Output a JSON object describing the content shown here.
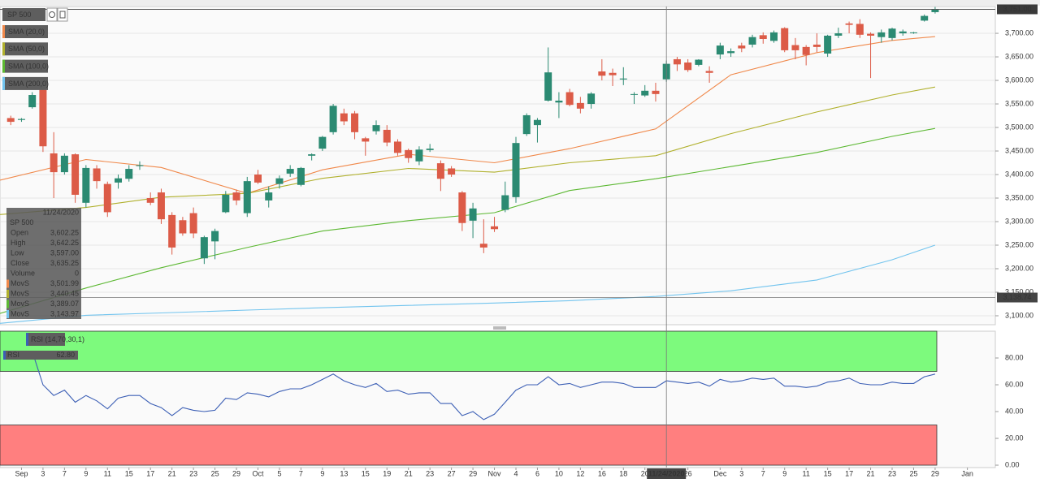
{
  "chart_data": [
    {
      "type": "candlestick",
      "series": [
        {
          "name": "SP 500",
          "up_color": "#2b8a72",
          "down_color": "#dc5b47",
          "open": [
            3520,
            3516,
            3543,
            3580,
            3445,
            3405,
            3443,
            3340,
            3413,
            3380,
            3383,
            3391,
            3418,
            3350,
            3362,
            3314,
            3303,
            3318,
            3222,
            3258,
            3320,
            3362,
            3318,
            3400,
            3345,
            3380,
            3402,
            3378,
            3440,
            3455,
            3490,
            3530,
            3530,
            3477,
            3492,
            3495,
            3470,
            3452,
            3428,
            3452,
            3424,
            3413,
            3362,
            3302,
            3253,
            3290,
            3325,
            3352,
            3486,
            3505,
            3557,
            3553,
            3575,
            3552,
            3550,
            3619,
            3616,
            3602,
            3570,
            3568,
            3578,
            3602.25,
            3645,
            3638,
            3633,
            3620,
            3655,
            3658,
            3674,
            3676,
            3696,
            3684,
            3711,
            3675,
            3671,
            3676,
            3657,
            3695,
            3721,
            3720,
            3699,
            3692,
            3690,
            3700,
            3701,
            3727,
            3745
          ],
          "high": [
            3525,
            3520,
            3575,
            3590,
            3490,
            3445,
            3445,
            3420,
            3420,
            3385,
            3400,
            3420,
            3428,
            3362,
            3370,
            3320,
            3310,
            3330,
            3270,
            3285,
            3365,
            3368,
            3395,
            3410,
            3375,
            3398,
            3420,
            3416,
            3445,
            3482,
            3550,
            3540,
            3535,
            3480,
            3515,
            3505,
            3475,
            3455,
            3460,
            3465,
            3430,
            3418,
            3365,
            3340,
            3305,
            3310,
            3385,
            3480,
            3530,
            3520,
            3670,
            3575,
            3582,
            3565,
            3575,
            3645,
            3625,
            3628,
            3575,
            3590,
            3595,
            3642.25,
            3650,
            3645,
            3645,
            3630,
            3680,
            3668,
            3680,
            3697,
            3702,
            3706,
            3713,
            3690,
            3675,
            3700,
            3697,
            3712,
            3725,
            3730,
            3702,
            3708,
            3712,
            3708,
            3703,
            3740,
            3756
          ],
          "low": [
            3505,
            3512,
            3540,
            3448,
            3350,
            3400,
            3340,
            3330,
            3370,
            3310,
            3370,
            3385,
            3410,
            3335,
            3295,
            3230,
            3270,
            3265,
            3210,
            3220,
            3318,
            3335,
            3310,
            3380,
            3330,
            3370,
            3395,
            3375,
            3430,
            3450,
            3485,
            3505,
            3475,
            3440,
            3485,
            3460,
            3440,
            3425,
            3420,
            3448,
            3365,
            3395,
            3280,
            3265,
            3233,
            3278,
            3320,
            3340,
            3482,
            3468,
            3555,
            3520,
            3545,
            3530,
            3540,
            3600,
            3588,
            3590,
            3550,
            3565,
            3555,
            3597,
            3620,
            3618,
            3630,
            3595,
            3645,
            3650,
            3660,
            3670,
            3678,
            3680,
            3660,
            3645,
            3632,
            3660,
            3650,
            3690,
            3700,
            3690,
            3605,
            3680,
            3685,
            3695,
            3699,
            3725,
            3742
          ],
          "close": [
            3512,
            3518,
            3569,
            3460,
            3405,
            3440,
            3357,
            3414,
            3386,
            3320,
            3392,
            3412,
            3420,
            3340,
            3305,
            3245,
            3275,
            3275,
            3267,
            3280,
            3357,
            3345,
            3386,
            3383,
            3362,
            3392,
            3412,
            3414,
            3443,
            3480,
            3546,
            3513,
            3490,
            3470,
            3505,
            3468,
            3446,
            3435,
            3453,
            3455,
            3391,
            3400,
            3297,
            3328,
            3245,
            3284,
            3356,
            3467,
            3526,
            3516,
            3617,
            3557,
            3548,
            3540,
            3572,
            3610,
            3611,
            3604,
            3571,
            3578,
            3571,
            3635.25,
            3634,
            3622,
            3644,
            3616,
            3674,
            3662,
            3668,
            3692,
            3688,
            3702,
            3664,
            3664,
            3654,
            3671,
            3695,
            3700,
            3718,
            3697,
            3695,
            3702,
            3710,
            3704,
            3702,
            3737,
            3751
          ]
        }
      ],
      "lines": [
        {
          "name": "SMA (20,0)",
          "color": "#f0884a",
          "x": [
            -1,
            7,
            14,
            22,
            29,
            37,
            45,
            52,
            60,
            67,
            75,
            82,
            86
          ],
          "values": [
            3388,
            3432,
            3415,
            3360,
            3410,
            3443,
            3425,
            3455,
            3497,
            3612,
            3659,
            3685,
            3693
          ]
        },
        {
          "name": "SMA (50,0)",
          "color": "#b0b02c",
          "x": [
            -1,
            7,
            14,
            22,
            29,
            37,
            45,
            52,
            60,
            67,
            75,
            82,
            86
          ],
          "values": [
            3315,
            3330,
            3352,
            3360,
            3392,
            3413,
            3405,
            3425,
            3440,
            3487,
            3533,
            3569,
            3586
          ]
        },
        {
          "name": "SMA (100,0)",
          "color": "#5cb832",
          "x": [
            -1,
            7,
            14,
            22,
            29,
            37,
            45,
            52,
            60,
            67,
            75,
            82,
            86
          ],
          "values": [
            3105,
            3159,
            3202,
            3245,
            3280,
            3302,
            3319,
            3366,
            3391,
            3417,
            3447,
            3481,
            3498
          ]
        },
        {
          "name": "SMA (200,0)",
          "color": "#72c4ee",
          "x": [
            -1,
            7,
            14,
            22,
            29,
            37,
            45,
            52,
            60,
            67,
            75,
            82,
            86
          ],
          "values": [
            3084,
            3101,
            3106,
            3112,
            3117,
            3122,
            3127,
            3132,
            3141,
            3153,
            3176,
            3219,
            3250
          ]
        }
      ],
      "xlim": [
        -1,
        91.6
      ],
      "ylim": [
        3081,
        3757
      ],
      "grid": true,
      "yticks": [
        {
          "value": 3100,
          "label": "3,100.00"
        },
        {
          "value": 3150,
          "label": "3,150.00"
        },
        {
          "value": 3200,
          "label": "3,200.00"
        },
        {
          "value": 3250,
          "label": "3,250.00"
        },
        {
          "value": 3300,
          "label": "3,300.00"
        },
        {
          "value": 3350,
          "label": "3,350.00"
        },
        {
          "value": 3400,
          "label": "3,400.00"
        },
        {
          "value": 3450,
          "label": "3,450.00"
        },
        {
          "value": 3500,
          "label": "3,500.00"
        },
        {
          "value": 3550,
          "label": "3,550.00"
        },
        {
          "value": 3600,
          "label": "3,600.00"
        },
        {
          "value": 3650,
          "label": "3,650.00"
        },
        {
          "value": 3700,
          "label": "3,700.00"
        }
      ],
      "xticks": [
        {
          "value": 1,
          "label": "Sep"
        },
        {
          "value": 3,
          "label": "3"
        },
        {
          "value": 5,
          "label": "7"
        },
        {
          "value": 7,
          "label": "9"
        },
        {
          "value": 9,
          "label": "11"
        },
        {
          "value": 11,
          "label": "15"
        },
        {
          "value": 13,
          "label": "17"
        },
        {
          "value": 15,
          "label": "21"
        },
        {
          "value": 17,
          "label": "23"
        },
        {
          "value": 19,
          "label": "25"
        },
        {
          "value": 21,
          "label": "29"
        },
        {
          "value": 23,
          "label": "Oct"
        },
        {
          "value": 25,
          "label": "5"
        },
        {
          "value": 27,
          "label": "7"
        },
        {
          "value": 29,
          "label": "9"
        },
        {
          "value": 31,
          "label": "13"
        },
        {
          "value": 33,
          "label": "15"
        },
        {
          "value": 35,
          "label": "19"
        },
        {
          "value": 37,
          "label": "21"
        },
        {
          "value": 39,
          "label": "23"
        },
        {
          "value": 41,
          "label": "27"
        },
        {
          "value": 43,
          "label": "29"
        },
        {
          "value": 45,
          "label": "Nov"
        },
        {
          "value": 47,
          "label": "4"
        },
        {
          "value": 49,
          "label": "6"
        },
        {
          "value": 51,
          "label": "10"
        },
        {
          "value": 53,
          "label": "12"
        },
        {
          "value": 55,
          "label": "16"
        },
        {
          "value": 57,
          "label": "18"
        },
        {
          "value": 59,
          "label": "20"
        },
        {
          "value": 63,
          "label": "26"
        },
        {
          "value": 66,
          "label": "Dec"
        },
        {
          "value": 68,
          "label": "3"
        },
        {
          "value": 70,
          "label": "7"
        },
        {
          "value": 72,
          "label": "9"
        },
        {
          "value": 74,
          "label": "11"
        },
        {
          "value": 76,
          "label": "15"
        },
        {
          "value": 78,
          "label": "17"
        },
        {
          "value": 80,
          "label": "21"
        },
        {
          "value": 82,
          "label": "23"
        },
        {
          "value": 84,
          "label": "25"
        },
        {
          "value": 86,
          "label": "29"
        },
        {
          "value": 89,
          "label": "Jan"
        }
      ],
      "last_price": {
        "value": 3751,
        "label": "3,751.00"
      },
      "crosshair": {
        "x": {
          "value": 61,
          "label": "11/24/2020"
        },
        "y": {
          "value": 3138.74,
          "label": "3,138.74"
        }
      },
      "tooltip": {
        "date": "11/24/2020",
        "symbol": "SP 500",
        "rows": [
          {
            "label": "Open",
            "value": "3,602.25"
          },
          {
            "label": "High",
            "value": "3,642.25"
          },
          {
            "label": "Low",
            "value": "3,597.00"
          },
          {
            "label": "Close",
            "value": "3,635.25"
          },
          {
            "label": "Volume",
            "value": "0"
          },
          {
            "label": "MovS",
            "value": "3,501.99",
            "color": "#f0884a"
          },
          {
            "label": "MovS",
            "value": "3,440.45",
            "color": "#b0b02c"
          },
          {
            "label": "MovS",
            "value": "3,389.07",
            "color": "#5cb832"
          },
          {
            "label": "MovS",
            "value": "3,143.97",
            "color": "#72c4ee"
          }
        ]
      }
    },
    {
      "type": "line",
      "series": [
        {
          "name": "RSI (14,70,30,1)",
          "color": "#3c5fb5",
          "values": [
            null,
            null,
            85,
            60,
            52,
            56,
            47,
            52,
            48,
            42,
            50,
            52,
            52,
            46,
            43,
            37,
            43,
            41,
            40,
            41,
            50,
            49,
            54,
            53,
            51,
            55,
            57,
            57,
            60,
            64,
            68,
            63,
            60,
            58,
            61,
            55,
            56,
            53,
            54,
            54,
            46,
            46,
            37,
            40,
            34,
            38,
            47,
            56,
            60,
            60,
            66,
            60,
            61,
            58,
            60,
            62,
            62,
            61,
            58,
            58,
            58,
            63,
            62,
            61,
            62,
            59,
            64,
            62,
            63,
            65,
            64,
            65,
            59,
            59,
            58,
            59,
            62,
            63,
            65,
            61,
            60,
            60,
            62,
            61,
            61,
            66,
            68
          ]
        }
      ],
      "readout": {
        "label": "RSI",
        "value": "62.80"
      },
      "bands": [
        {
          "range": [
            70,
            100
          ],
          "color": "#7dfa7d"
        },
        {
          "range": [
            0,
            30
          ],
          "color": "#ff7f7f"
        }
      ],
      "xlim": [
        -1,
        91.6
      ],
      "ylim": [
        -1.8,
        100
      ],
      "yticks": [
        {
          "value": 0,
          "label": "0.00"
        },
        {
          "value": 20,
          "label": "20.00"
        },
        {
          "value": 40,
          "label": "40.00"
        },
        {
          "value": 60,
          "label": "60.00"
        },
        {
          "value": 80,
          "label": "80.00"
        }
      ]
    }
  ]
}
